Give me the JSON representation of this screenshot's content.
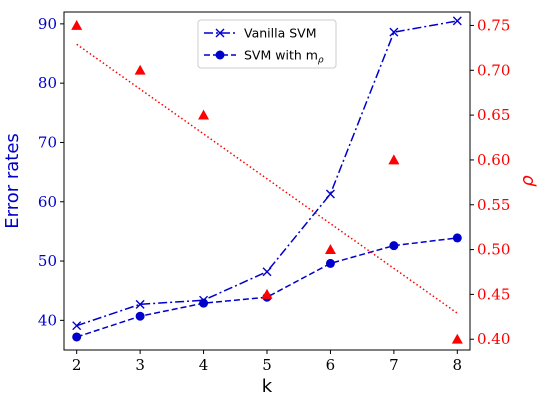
{
  "chart_data": {
    "type": "line",
    "x": [
      2,
      3,
      4,
      5,
      6,
      7,
      8
    ],
    "xlabel": "k",
    "xlim": [
      1.8,
      8.2
    ],
    "xticks": [
      2,
      3,
      4,
      5,
      6,
      7,
      8
    ],
    "y_left": {
      "label": "Error rates",
      "lim": [
        35,
        92
      ],
      "ticks": [
        40,
        50,
        60,
        70,
        80,
        90
      ],
      "color": "#0000cc"
    },
    "y_right": {
      "label": "ρ",
      "lim": [
        0.388,
        0.765
      ],
      "ticks": [
        "0.40",
        "0.45",
        "0.50",
        "0.55",
        "0.60",
        "0.65",
        "0.70",
        "0.75"
      ],
      "color": "#ff0000"
    },
    "series": [
      {
        "name": "Vanilla SVM",
        "axis": "left",
        "marker": "x",
        "linestyle": "dashdot",
        "color": "#0000cc",
        "values": [
          39.1,
          42.7,
          43.4,
          48.2,
          61.3,
          88.6,
          90.5
        ]
      },
      {
        "name": "SVM with mρ",
        "axis": "left",
        "marker": "circle",
        "linestyle": "dashed",
        "color": "#0000cc",
        "values": [
          37.2,
          40.7,
          42.9,
          43.9,
          49.6,
          52.6,
          53.9
        ]
      },
      {
        "axis": "right",
        "marker": "triangle",
        "linestyle": "none",
        "color": "#ff0000",
        "values": [
          0.75,
          0.7,
          0.65,
          0.45,
          0.5,
          0.6,
          0.4
        ]
      },
      {
        "axis": "right",
        "marker": "none",
        "linestyle": "dotted",
        "color": "#ff0000",
        "values": [
          0.729,
          0.679,
          0.629,
          0.579,
          0.529,
          0.479,
          0.429
        ]
      }
    ],
    "legend": {
      "placement": "top-center",
      "entries": [
        {
          "main": "Vanilla SVM",
          "sub": ""
        },
        {
          "main": "SVM with m",
          "sub": "ρ"
        }
      ]
    }
  }
}
